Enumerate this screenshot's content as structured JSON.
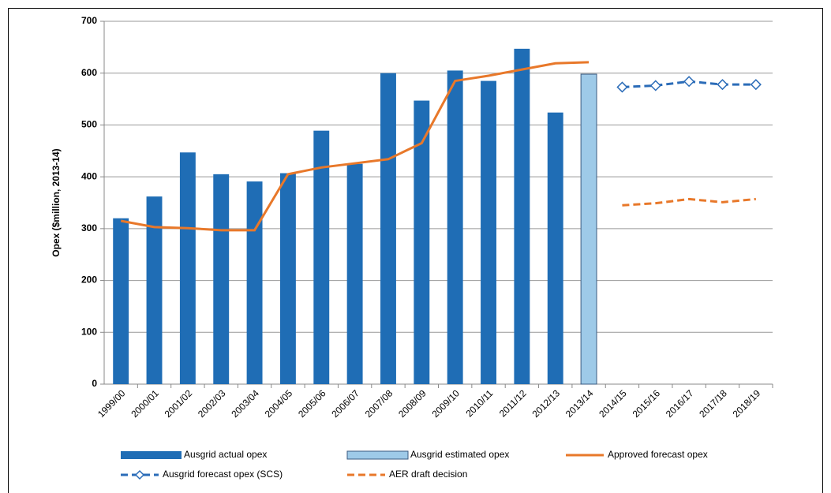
{
  "chart_data": {
    "type": "bar",
    "y_label": "Opex ($million, 2013-14)",
    "categories": [
      "1999/00",
      "2000/01",
      "2001/02",
      "2002/03",
      "2003/04",
      "2004/05",
      "2005/06",
      "2006/07",
      "2007/08",
      "2008/09",
      "2009/10",
      "2010/11",
      "2011/12",
      "2012/13",
      "2013/14",
      "2014/15",
      "2015/16",
      "2016/17",
      "2017/18",
      "2018/19"
    ],
    "ylim": [
      0,
      700
    ],
    "yticks": [
      0,
      100,
      200,
      300,
      400,
      500,
      600,
      700
    ],
    "grid": true,
    "legend": "bottom",
    "series": [
      {
        "name": "Ausgrid actual opex",
        "type": "bar",
        "color": "#1f6db5",
        "values": [
          320,
          362,
          447,
          405,
          391,
          407,
          489,
          425,
          600,
          547,
          605,
          585,
          647,
          524,
          null,
          null,
          null,
          null,
          null,
          null
        ]
      },
      {
        "name": "Ausgrid estimated opex",
        "type": "bar",
        "color": "#9ecae8",
        "values": [
          null,
          null,
          null,
          null,
          null,
          null,
          null,
          null,
          null,
          null,
          null,
          null,
          null,
          null,
          598,
          null,
          null,
          null,
          null,
          null
        ]
      },
      {
        "name": "Approved forecast opex",
        "type": "line",
        "color": "#e8782a",
        "dashed": false,
        "values": [
          315,
          303,
          301,
          297,
          297,
          405,
          418,
          426,
          434,
          465,
          585,
          595,
          607,
          619,
          621,
          null,
          null,
          null,
          null,
          null
        ]
      },
      {
        "name": "Ausgrid forecast opex (SCS)",
        "type": "line",
        "color": "#2b6cb8",
        "dashed": true,
        "marker": "diamond",
        "values": [
          null,
          null,
          null,
          null,
          null,
          null,
          null,
          null,
          null,
          null,
          null,
          null,
          null,
          null,
          null,
          573,
          576,
          584,
          578,
          578
        ]
      },
      {
        "name": "AER draft decision",
        "type": "line",
        "color": "#e8782a",
        "dashed": true,
        "values": [
          null,
          null,
          null,
          null,
          null,
          null,
          null,
          null,
          null,
          null,
          null,
          null,
          null,
          null,
          null,
          345,
          349,
          357,
          351,
          357
        ]
      }
    ]
  }
}
